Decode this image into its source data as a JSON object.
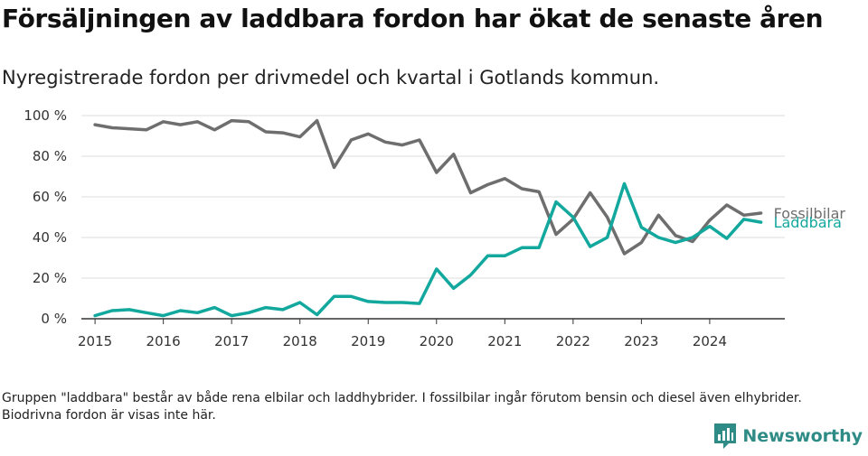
{
  "title": "Försäljningen av laddbara fordon har ökat de senaste åren",
  "subtitle": "Nyregistrerade fordon per drivmedel och kvartal i Gotlands kommun.",
  "footnote": "Gruppen \"laddbara\" består av både rena elbilar och laddhybrider. I fossilbilar ingår förutom bensin och diesel även elhybrider. Biodrivna fordon är visas inte här.",
  "brand": {
    "name": "Newsworthy",
    "icon": "bar-chart-icon",
    "color": "#2e8b86"
  },
  "chart_data": {
    "type": "line",
    "title": "",
    "xlabel": "",
    "ylabel": "",
    "x_ticks": [
      "2015",
      "2016",
      "2017",
      "2018",
      "2019",
      "2020",
      "2021",
      "2022",
      "2023",
      "2024"
    ],
    "y_ticks": [
      "0 %",
      "20 %",
      "40 %",
      "60 %",
      "80 %",
      "100 %"
    ],
    "ylim": [
      0,
      100
    ],
    "x_start": 2015,
    "x_step": 0.25,
    "grid": true,
    "series": [
      {
        "name": "Fossilbilar",
        "color": "#6e6e6e",
        "values": [
          95.5,
          94,
          93.5,
          93,
          97,
          95.5,
          97,
          93,
          97.5,
          97,
          92,
          91.5,
          89.5,
          97.5,
          74.5,
          88,
          91,
          87,
          85.5,
          88,
          72,
          81,
          62,
          66,
          69,
          64,
          62.5,
          41.5,
          49,
          62,
          50,
          32,
          37.5,
          51,
          41,
          38,
          48.5,
          56,
          51,
          52
        ]
      },
      {
        "name": "Laddbara",
        "color": "#13a89e",
        "values": [
          1.5,
          4,
          4.5,
          3,
          1.5,
          4,
          3,
          5.5,
          1.5,
          3,
          5.5,
          4.5,
          8,
          2,
          11,
          11,
          8.5,
          8,
          8,
          7.5,
          24.5,
          15,
          21.5,
          31,
          31,
          35,
          35,
          57.5,
          50,
          35.5,
          40,
          66.5,
          45,
          40,
          37.5,
          40,
          45.5,
          39.5,
          49,
          47.5
        ]
      }
    ]
  }
}
